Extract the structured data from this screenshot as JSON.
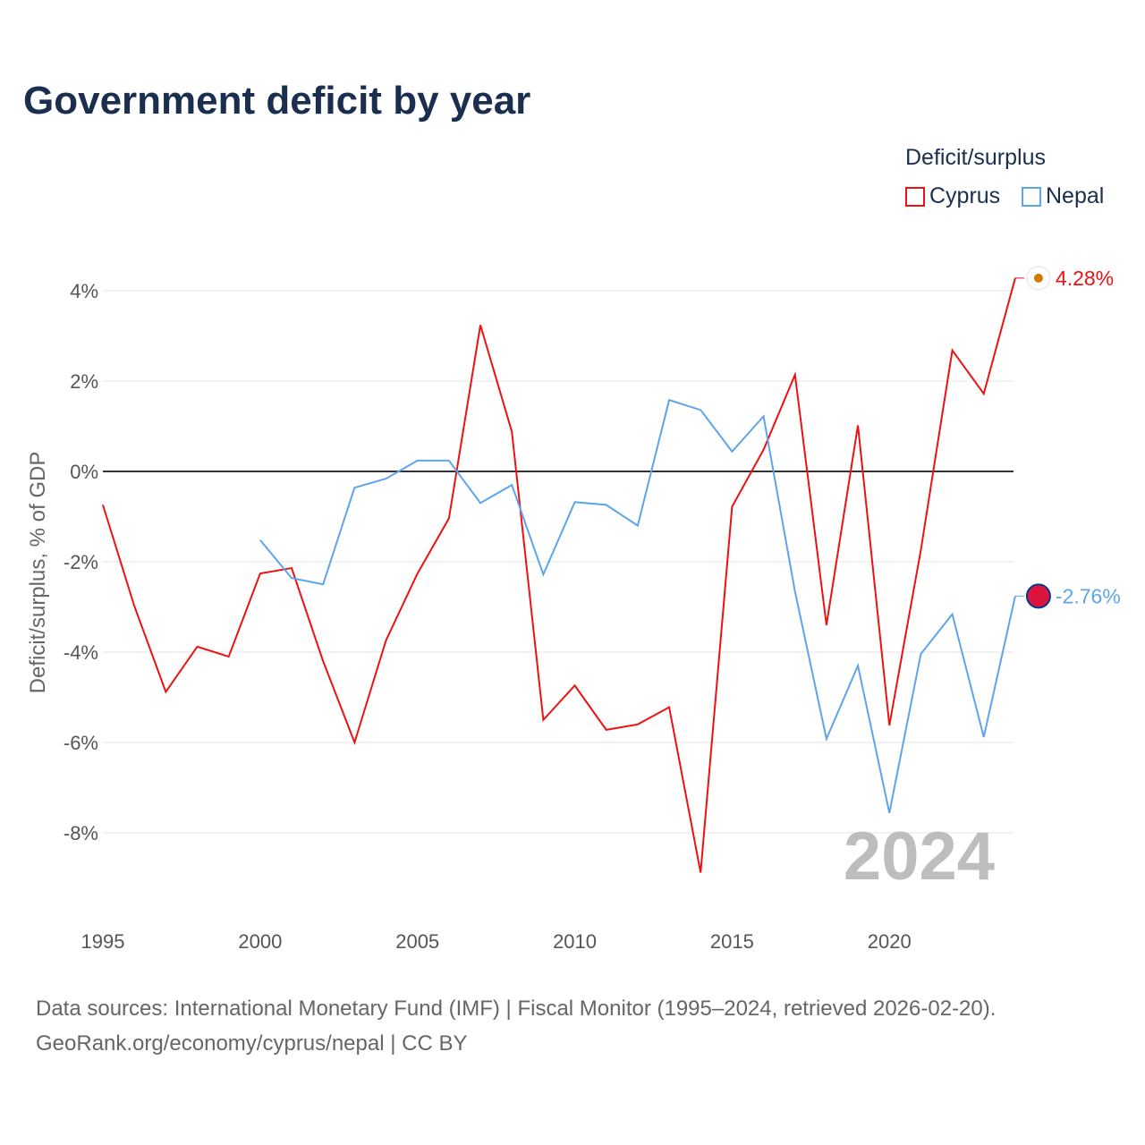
{
  "chart_data": {
    "type": "line",
    "title": "Government deficit by year",
    "ylabel": "Deficit/surplus, % of GDP",
    "xlabel": "",
    "ylim": [
      -10,
      5
    ],
    "xlim": [
      1995,
      2024
    ],
    "yticks": [
      4,
      2,
      0,
      -2,
      -4,
      -6,
      -8
    ],
    "ytick_labels": [
      "4%",
      "2%",
      "0%",
      "-2%",
      "-4%",
      "-6%",
      "-8%"
    ],
    "xticks": [
      1995,
      2000,
      2005,
      2010,
      2015,
      2020
    ],
    "xtick_labels": [
      "1995",
      "2000",
      "2005",
      "2010",
      "2015",
      "2020"
    ],
    "grid": true,
    "legend_title": "Deficit/surplus",
    "legend_position": "top-right",
    "year_watermark": "2024",
    "series": [
      {
        "name": "Cyprus",
        "color": "#ee1111",
        "end_label": "4.28%",
        "x": [
          1995,
          1996,
          1997,
          1998,
          1999,
          2000,
          2001,
          2002,
          2003,
          2004,
          2005,
          2006,
          2007,
          2008,
          2009,
          2010,
          2011,
          2012,
          2013,
          2014,
          2015,
          2016,
          2017,
          2018,
          2019,
          2020,
          2021,
          2022,
          2023,
          2024
        ],
        "values": [
          -0.74,
          -2.98,
          -4.88,
          -3.88,
          -4.1,
          -2.26,
          -2.14,
          -4.2,
          -6.0,
          -3.74,
          -2.26,
          -1.04,
          3.24,
          0.88,
          -5.5,
          -4.74,
          -5.72,
          -5.6,
          -5.22,
          -8.88,
          -0.78,
          0.48,
          2.14,
          -3.4,
          1.02,
          -5.62,
          -1.74,
          2.68,
          1.72,
          4.28
        ]
      },
      {
        "name": "Nepal",
        "color": "#5da5ea",
        "end_label": "-2.76%",
        "x": [
          2000,
          2001,
          2002,
          2003,
          2004,
          2005,
          2006,
          2007,
          2008,
          2009,
          2010,
          2011,
          2012,
          2013,
          2014,
          2015,
          2016,
          2017,
          2018,
          2019,
          2020,
          2021,
          2022,
          2023,
          2024
        ],
        "values": [
          -1.52,
          -2.36,
          -2.5,
          -0.36,
          -0.16,
          0.24,
          0.24,
          -0.7,
          -0.3,
          -2.28,
          -0.68,
          -0.74,
          -1.2,
          1.58,
          1.36,
          0.44,
          1.22,
          -2.66,
          -5.92,
          -4.3,
          -7.56,
          -4.04,
          -3.16,
          -5.88,
          -2.76
        ]
      }
    ]
  },
  "footer": {
    "line1": "Data sources: International Monetary Fund (IMF) | Fiscal Monitor (1995–2024, retrieved 2026-02-20).",
    "line2": "GeoRank.org/economy/cyprus/nepal | CC BY"
  }
}
